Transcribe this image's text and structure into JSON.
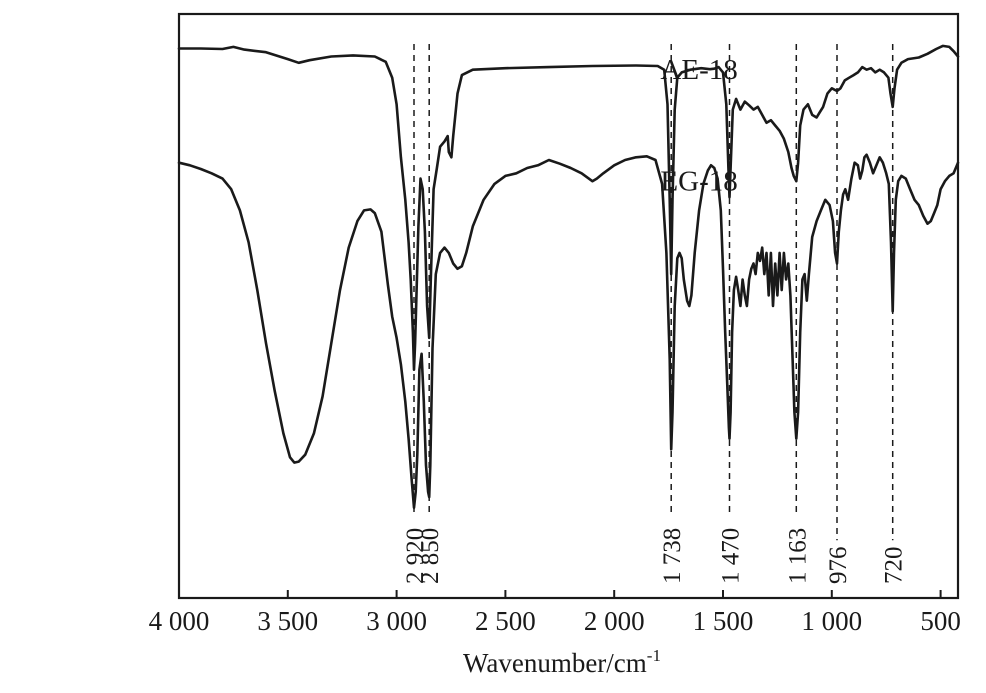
{
  "chart_data": {
    "type": "line",
    "title": "",
    "xlabel": "Wavenumber/cm",
    "xlabel_superscript": "-1",
    "ylabel": "",
    "x_reversed": true,
    "xlim": [
      4000,
      420
    ],
    "ylim": [
      -0.05,
      1.05
    ],
    "grid": false,
    "line_color": "#1a1a1a",
    "x_ticks": [
      4000,
      3500,
      3000,
      2500,
      2000,
      1500,
      1000,
      500
    ],
    "x_tick_labels": [
      "4 000",
      "3 500",
      "3 000",
      "2 500",
      "2 000",
      "1 500",
      "1 000",
      "500"
    ],
    "reference_lines": [
      {
        "x": 2920,
        "label": "2 920"
      },
      {
        "x": 2850,
        "label": "2 850"
      },
      {
        "x": 1738,
        "label": "1 738"
      },
      {
        "x": 1470,
        "label": "1 470"
      },
      {
        "x": 1163,
        "label": "1 163"
      },
      {
        "x": 976,
        "label": "976"
      },
      {
        "x": 720,
        "label": "720"
      }
    ],
    "series": [
      {
        "name": "AE-18",
        "label_x": 1610,
        "label_y": 0.94,
        "points": [
          [
            4000,
            0.985
          ],
          [
            3900,
            0.985
          ],
          [
            3800,
            0.984
          ],
          [
            3750,
            0.988
          ],
          [
            3700,
            0.983
          ],
          [
            3600,
            0.978
          ],
          [
            3500,
            0.965
          ],
          [
            3450,
            0.958
          ],
          [
            3400,
            0.963
          ],
          [
            3300,
            0.97
          ],
          [
            3200,
            0.972
          ],
          [
            3100,
            0.97
          ],
          [
            3050,
            0.96
          ],
          [
            3020,
            0.93
          ],
          [
            3000,
            0.88
          ],
          [
            2980,
            0.78
          ],
          [
            2960,
            0.7
          ],
          [
            2945,
            0.62
          ],
          [
            2935,
            0.55
          ],
          [
            2925,
            0.45
          ],
          [
            2920,
            0.38
          ],
          [
            2915,
            0.43
          ],
          [
            2900,
            0.65
          ],
          [
            2890,
            0.74
          ],
          [
            2880,
            0.72
          ],
          [
            2870,
            0.64
          ],
          [
            2860,
            0.5
          ],
          [
            2850,
            0.44
          ],
          [
            2843,
            0.55
          ],
          [
            2830,
            0.72
          ],
          [
            2815,
            0.76
          ],
          [
            2800,
            0.8
          ],
          [
            2780,
            0.81
          ],
          [
            2765,
            0.82
          ],
          [
            2760,
            0.79
          ],
          [
            2748,
            0.78
          ],
          [
            2740,
            0.82
          ],
          [
            2720,
            0.9
          ],
          [
            2700,
            0.935
          ],
          [
            2650,
            0.945
          ],
          [
            2500,
            0.948
          ],
          [
            2300,
            0.95
          ],
          [
            2100,
            0.952
          ],
          [
            1900,
            0.953
          ],
          [
            1800,
            0.952
          ],
          [
            1770,
            0.945
          ],
          [
            1755,
            0.88
          ],
          [
            1745,
            0.7
          ],
          [
            1738,
            0.56
          ],
          [
            1732,
            0.7
          ],
          [
            1722,
            0.87
          ],
          [
            1710,
            0.93
          ],
          [
            1690,
            0.94
          ],
          [
            1650,
            0.945
          ],
          [
            1600,
            0.948
          ],
          [
            1560,
            0.946
          ],
          [
            1540,
            0.947
          ],
          [
            1520,
            0.95
          ],
          [
            1500,
            0.94
          ],
          [
            1485,
            0.88
          ],
          [
            1475,
            0.76
          ],
          [
            1470,
            0.705
          ],
          [
            1465,
            0.76
          ],
          [
            1455,
            0.87
          ],
          [
            1440,
            0.89
          ],
          [
            1420,
            0.87
          ],
          [
            1400,
            0.885
          ],
          [
            1380,
            0.878
          ],
          [
            1360,
            0.87
          ],
          [
            1340,
            0.875
          ],
          [
            1320,
            0.86
          ],
          [
            1300,
            0.845
          ],
          [
            1280,
            0.85
          ],
          [
            1260,
            0.84
          ],
          [
            1240,
            0.83
          ],
          [
            1220,
            0.815
          ],
          [
            1200,
            0.79
          ],
          [
            1185,
            0.76
          ],
          [
            1175,
            0.745
          ],
          [
            1163,
            0.735
          ],
          [
            1155,
            0.77
          ],
          [
            1145,
            0.84
          ],
          [
            1130,
            0.87
          ],
          [
            1110,
            0.88
          ],
          [
            1090,
            0.86
          ],
          [
            1070,
            0.855
          ],
          [
            1055,
            0.865
          ],
          [
            1040,
            0.875
          ],
          [
            1020,
            0.9
          ],
          [
            1000,
            0.91
          ],
          [
            976,
            0.905
          ],
          [
            960,
            0.91
          ],
          [
            940,
            0.925
          ],
          [
            920,
            0.93
          ],
          [
            900,
            0.935
          ],
          [
            880,
            0.94
          ],
          [
            860,
            0.95
          ],
          [
            840,
            0.945
          ],
          [
            820,
            0.948
          ],
          [
            800,
            0.94
          ],
          [
            780,
            0.945
          ],
          [
            760,
            0.94
          ],
          [
            740,
            0.93
          ],
          [
            730,
            0.9
          ],
          [
            720,
            0.875
          ],
          [
            712,
            0.91
          ],
          [
            700,
            0.945
          ],
          [
            680,
            0.958
          ],
          [
            650,
            0.965
          ],
          [
            600,
            0.968
          ],
          [
            560,
            0.975
          ],
          [
            520,
            0.984
          ],
          [
            490,
            0.99
          ],
          [
            460,
            0.988
          ],
          [
            440,
            0.98
          ],
          [
            420,
            0.97
          ]
        ]
      },
      {
        "name": "EG-18",
        "label_x": 1610,
        "label_y": 0.73,
        "points": [
          [
            4000,
            0.77
          ],
          [
            3950,
            0.765
          ],
          [
            3900,
            0.758
          ],
          [
            3850,
            0.75
          ],
          [
            3800,
            0.74
          ],
          [
            3760,
            0.72
          ],
          [
            3720,
            0.68
          ],
          [
            3680,
            0.62
          ],
          [
            3640,
            0.53
          ],
          [
            3600,
            0.43
          ],
          [
            3560,
            0.34
          ],
          [
            3520,
            0.26
          ],
          [
            3490,
            0.215
          ],
          [
            3470,
            0.205
          ],
          [
            3450,
            0.207
          ],
          [
            3420,
            0.22
          ],
          [
            3380,
            0.26
          ],
          [
            3340,
            0.33
          ],
          [
            3300,
            0.43
          ],
          [
            3260,
            0.53
          ],
          [
            3220,
            0.61
          ],
          [
            3180,
            0.66
          ],
          [
            3150,
            0.68
          ],
          [
            3120,
            0.682
          ],
          [
            3100,
            0.675
          ],
          [
            3070,
            0.64
          ],
          [
            3040,
            0.54
          ],
          [
            3020,
            0.48
          ],
          [
            3000,
            0.44
          ],
          [
            2980,
            0.39
          ],
          [
            2960,
            0.32
          ],
          [
            2945,
            0.25
          ],
          [
            2930,
            0.17
          ],
          [
            2920,
            0.12
          ],
          [
            2912,
            0.15
          ],
          [
            2905,
            0.22
          ],
          [
            2895,
            0.38
          ],
          [
            2885,
            0.41
          ],
          [
            2875,
            0.32
          ],
          [
            2865,
            0.2
          ],
          [
            2855,
            0.15
          ],
          [
            2850,
            0.14
          ],
          [
            2845,
            0.2
          ],
          [
            2835,
            0.42
          ],
          [
            2820,
            0.56
          ],
          [
            2800,
            0.6
          ],
          [
            2780,
            0.61
          ],
          [
            2760,
            0.6
          ],
          [
            2740,
            0.58
          ],
          [
            2720,
            0.57
          ],
          [
            2700,
            0.575
          ],
          [
            2680,
            0.6
          ],
          [
            2650,
            0.65
          ],
          [
            2600,
            0.7
          ],
          [
            2550,
            0.73
          ],
          [
            2500,
            0.745
          ],
          [
            2450,
            0.75
          ],
          [
            2400,
            0.76
          ],
          [
            2350,
            0.765
          ],
          [
            2300,
            0.775
          ],
          [
            2250,
            0.768
          ],
          [
            2200,
            0.76
          ],
          [
            2150,
            0.75
          ],
          [
            2100,
            0.735
          ],
          [
            2080,
            0.74
          ],
          [
            2050,
            0.75
          ],
          [
            2000,
            0.765
          ],
          [
            1950,
            0.775
          ],
          [
            1900,
            0.78
          ],
          [
            1850,
            0.782
          ],
          [
            1810,
            0.775
          ],
          [
            1780,
            0.73
          ],
          [
            1760,
            0.6
          ],
          [
            1745,
            0.4
          ],
          [
            1738,
            0.23
          ],
          [
            1732,
            0.3
          ],
          [
            1722,
            0.5
          ],
          [
            1710,
            0.59
          ],
          [
            1700,
            0.6
          ],
          [
            1690,
            0.59
          ],
          [
            1680,
            0.55
          ],
          [
            1665,
            0.51
          ],
          [
            1655,
            0.5
          ],
          [
            1645,
            0.52
          ],
          [
            1630,
            0.6
          ],
          [
            1610,
            0.68
          ],
          [
            1590,
            0.73
          ],
          [
            1570,
            0.755
          ],
          [
            1555,
            0.765
          ],
          [
            1540,
            0.76
          ],
          [
            1525,
            0.74
          ],
          [
            1510,
            0.68
          ],
          [
            1500,
            0.57
          ],
          [
            1490,
            0.45
          ],
          [
            1480,
            0.35
          ],
          [
            1473,
            0.27
          ],
          [
            1470,
            0.25
          ],
          [
            1465,
            0.3
          ],
          [
            1458,
            0.45
          ],
          [
            1450,
            0.53
          ],
          [
            1440,
            0.555
          ],
          [
            1430,
            0.53
          ],
          [
            1420,
            0.5
          ],
          [
            1410,
            0.55
          ],
          [
            1400,
            0.52
          ],
          [
            1390,
            0.5
          ],
          [
            1380,
            0.55
          ],
          [
            1370,
            0.57
          ],
          [
            1360,
            0.58
          ],
          [
            1350,
            0.56
          ],
          [
            1340,
            0.6
          ],
          [
            1330,
            0.585
          ],
          [
            1320,
            0.61
          ],
          [
            1310,
            0.56
          ],
          [
            1300,
            0.6
          ],
          [
            1290,
            0.52
          ],
          [
            1280,
            0.6
          ],
          [
            1270,
            0.5
          ],
          [
            1260,
            0.58
          ],
          [
            1250,
            0.52
          ],
          [
            1240,
            0.6
          ],
          [
            1230,
            0.53
          ],
          [
            1220,
            0.6
          ],
          [
            1210,
            0.55
          ],
          [
            1200,
            0.58
          ],
          [
            1190,
            0.52
          ],
          [
            1180,
            0.4
          ],
          [
            1172,
            0.3
          ],
          [
            1163,
            0.25
          ],
          [
            1155,
            0.3
          ],
          [
            1145,
            0.45
          ],
          [
            1135,
            0.55
          ],
          [
            1125,
            0.56
          ],
          [
            1115,
            0.51
          ],
          [
            1105,
            0.56
          ],
          [
            1090,
            0.63
          ],
          [
            1070,
            0.66
          ],
          [
            1050,
            0.68
          ],
          [
            1030,
            0.7
          ],
          [
            1010,
            0.69
          ],
          [
            995,
            0.66
          ],
          [
            985,
            0.6
          ],
          [
            976,
            0.58
          ],
          [
            968,
            0.64
          ],
          [
            958,
            0.68
          ],
          [
            948,
            0.71
          ],
          [
            938,
            0.72
          ],
          [
            925,
            0.7
          ],
          [
            910,
            0.74
          ],
          [
            895,
            0.77
          ],
          [
            880,
            0.765
          ],
          [
            870,
            0.74
          ],
          [
            860,
            0.755
          ],
          [
            850,
            0.78
          ],
          [
            840,
            0.785
          ],
          [
            825,
            0.77
          ],
          [
            810,
            0.75
          ],
          [
            795,
            0.765
          ],
          [
            780,
            0.78
          ],
          [
            765,
            0.77
          ],
          [
            750,
            0.75
          ],
          [
            738,
            0.73
          ],
          [
            728,
            0.62
          ],
          [
            720,
            0.49
          ],
          [
            714,
            0.6
          ],
          [
            706,
            0.7
          ],
          [
            695,
            0.735
          ],
          [
            680,
            0.745
          ],
          [
            660,
            0.74
          ],
          [
            640,
            0.72
          ],
          [
            620,
            0.7
          ],
          [
            600,
            0.69
          ],
          [
            580,
            0.67
          ],
          [
            560,
            0.655
          ],
          [
            545,
            0.66
          ],
          [
            530,
            0.675
          ],
          [
            515,
            0.69
          ],
          [
            500,
            0.72
          ],
          [
            480,
            0.735
          ],
          [
            460,
            0.745
          ],
          [
            440,
            0.75
          ],
          [
            420,
            0.77
          ]
        ]
      }
    ]
  }
}
